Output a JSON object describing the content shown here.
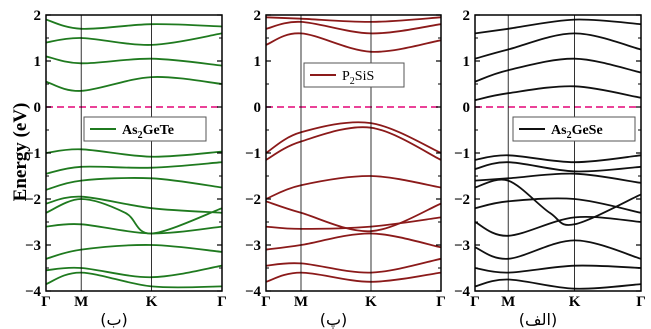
{
  "chart_data": {
    "type": "line",
    "ylabel": "Energy (eV)",
    "ylim": [
      -4,
      2
    ],
    "yticks": [
      "2",
      "1",
      "0",
      "−1",
      "−2",
      "−3",
      "−4"
    ],
    "yticks_val": [
      2,
      1,
      0,
      -1,
      -2,
      -3,
      -4
    ],
    "xticks": [
      "Γ",
      "M",
      "K",
      "Γ"
    ],
    "xticks_pos": [
      0,
      0.2,
      0.6,
      1
    ],
    "fermi_level": 0,
    "fermi_color": "#e8288a",
    "panels": [
      {
        "caption": "(ب)",
        "legend": "As2GeTe",
        "legend_main": "As",
        "legend_sub": "2",
        "legend_rest": "GeTe",
        "legend_bold": true,
        "color": "#1f7a1f",
        "series": [
          {
            "x": [
              0,
              0.2,
              0.6,
              1
            ],
            "y": [
              -1.0,
              -0.92,
              -1.08,
              -0.97
            ]
          },
          {
            "x": [
              0,
              0.2,
              0.6,
              1
            ],
            "y": [
              -1.45,
              -1.3,
              -1.32,
              -1.2
            ]
          },
          {
            "x": [
              0,
              0.2,
              0.6,
              1
            ],
            "y": [
              -1.8,
              -1.6,
              -1.55,
              -1.75
            ]
          },
          {
            "x": [
              0,
              0.2,
              0.6,
              1
            ],
            "y": [
              -2.1,
              -1.95,
              -2.2,
              -2.3
            ]
          },
          {
            "x": [
              0,
              0.2,
              0.45,
              0.6,
              1
            ],
            "y": [
              -2.3,
              -2.0,
              -2.3,
              -2.75,
              -2.2
            ]
          },
          {
            "x": [
              0,
              0.2,
              0.6,
              1
            ],
            "y": [
              -2.6,
              -2.55,
              -2.75,
              -2.6
            ]
          },
          {
            "x": [
              0,
              0.2,
              0.6,
              1
            ],
            "y": [
              -3.3,
              -3.1,
              -3.0,
              -3.15
            ]
          },
          {
            "x": [
              0,
              0.2,
              0.6,
              1
            ],
            "y": [
              -3.55,
              -3.5,
              -3.7,
              -3.45
            ]
          },
          {
            "x": [
              0,
              0.2,
              0.6,
              1
            ],
            "y": [
              -3.85,
              -3.6,
              -3.9,
              -3.9
            ]
          },
          {
            "x": [
              0,
              0.2,
              0.6,
              1
            ],
            "y": [
              0.55,
              0.35,
              0.65,
              0.5
            ]
          },
          {
            "x": [
              0,
              0.2,
              0.6,
              1
            ],
            "y": [
              1.1,
              0.95,
              1.05,
              0.9
            ]
          },
          {
            "x": [
              0,
              0.2,
              0.6,
              1
            ],
            "y": [
              1.4,
              1.5,
              1.35,
              1.6
            ]
          },
          {
            "x": [
              0,
              0.2,
              0.6,
              1
            ],
            "y": [
              1.9,
              1.7,
              1.8,
              1.75
            ]
          }
        ]
      },
      {
        "caption": "(پ)",
        "legend": "P2SiS",
        "legend_main": "P",
        "legend_sub": "2",
        "legend_rest": "SiS",
        "legend_bold": false,
        "color": "#8b1a1a",
        "series": [
          {
            "x": [
              0,
              0.2,
              0.6,
              1
            ],
            "y": [
              -1.0,
              -0.55,
              -0.35,
              -1.0
            ]
          },
          {
            "x": [
              0,
              0.2,
              0.6,
              1
            ],
            "y": [
              -1.15,
              -0.75,
              -0.45,
              -1.15
            ]
          },
          {
            "x": [
              0,
              0.2,
              0.6,
              1
            ],
            "y": [
              -2.0,
              -1.7,
              -1.5,
              -1.75
            ]
          },
          {
            "x": [
              0,
              0.2,
              0.6,
              1
            ],
            "y": [
              -2.05,
              -2.3,
              -2.7,
              -2.1
            ]
          },
          {
            "x": [
              0,
              0.2,
              0.6,
              1
            ],
            "y": [
              -2.6,
              -2.65,
              -2.6,
              -2.4
            ]
          },
          {
            "x": [
              0,
              0.2,
              0.6,
              1
            ],
            "y": [
              -3.1,
              -3.0,
              -2.75,
              -3.05
            ]
          },
          {
            "x": [
              0,
              0.2,
              0.6,
              1
            ],
            "y": [
              -3.45,
              -3.4,
              -3.6,
              -3.3
            ]
          },
          {
            "x": [
              0,
              0.2,
              0.6,
              1
            ],
            "y": [
              -3.8,
              -3.6,
              -3.8,
              -3.6
            ]
          },
          {
            "x": [
              0,
              0.2,
              0.6,
              1
            ],
            "y": [
              1.35,
              1.6,
              1.2,
              1.45
            ]
          },
          {
            "x": [
              0,
              0.2,
              0.6,
              1
            ],
            "y": [
              1.7,
              1.85,
              1.6,
              1.8
            ]
          },
          {
            "x": [
              0,
              0.2,
              0.6,
              1
            ],
            "y": [
              1.95,
              1.92,
              1.85,
              1.95
            ]
          }
        ]
      },
      {
        "caption": "(الف)",
        "legend": "As2GeSe",
        "legend_main": "As",
        "legend_sub": "2",
        "legend_rest": "GeSe",
        "legend_bold": true,
        "color": "#111111",
        "series": [
          {
            "x": [
              0,
              0.2,
              0.6,
              1
            ],
            "y": [
              -1.15,
              -1.05,
              -1.2,
              -1.05
            ]
          },
          {
            "x": [
              0,
              0.2,
              0.6,
              1
            ],
            "y": [
              -1.35,
              -1.2,
              -1.4,
              -1.3
            ]
          },
          {
            "x": [
              0,
              0.2,
              0.6,
              1
            ],
            "y": [
              -1.6,
              -1.55,
              -1.45,
              -1.65
            ]
          },
          {
            "x": [
              0,
              0.2,
              0.45,
              0.6,
              1
            ],
            "y": [
              -1.75,
              -1.6,
              -2.3,
              -2.55,
              -1.9
            ]
          },
          {
            "x": [
              0,
              0.2,
              0.6,
              1
            ],
            "y": [
              -2.2,
              -2.05,
              -2.0,
              -2.3
            ]
          },
          {
            "x": [
              0,
              0.2,
              0.6,
              1
            ],
            "y": [
              -2.5,
              -2.8,
              -2.4,
              -2.5
            ]
          },
          {
            "x": [
              0,
              0.2,
              0.6,
              1
            ],
            "y": [
              -3.05,
              -3.3,
              -2.9,
              -3.3
            ]
          },
          {
            "x": [
              0,
              0.2,
              0.6,
              1
            ],
            "y": [
              -3.5,
              -3.6,
              -3.45,
              -3.5
            ]
          },
          {
            "x": [
              0,
              0.2,
              0.6,
              1
            ],
            "y": [
              -3.9,
              -3.75,
              -3.95,
              -3.85
            ]
          },
          {
            "x": [
              0,
              0.2,
              0.6,
              1
            ],
            "y": [
              0.15,
              0.3,
              0.45,
              0.2
            ]
          },
          {
            "x": [
              0,
              0.2,
              0.6,
              1
            ],
            "y": [
              0.55,
              0.8,
              1.05,
              0.75
            ]
          },
          {
            "x": [
              0,
              0.2,
              0.6,
              1
            ],
            "y": [
              1.05,
              1.25,
              1.6,
              1.25
            ]
          },
          {
            "x": [
              0,
              0.2,
              0.6,
              1
            ],
            "y": [
              1.6,
              1.7,
              1.9,
              1.8
            ]
          }
        ]
      }
    ]
  }
}
